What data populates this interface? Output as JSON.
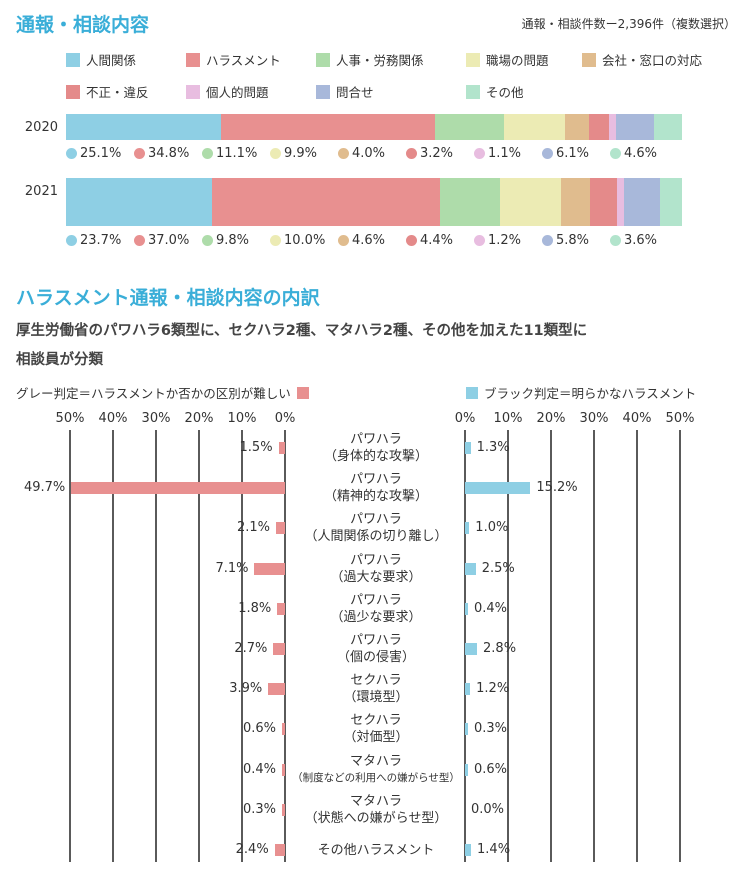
{
  "section1": {
    "title": "通報・相談内容",
    "note": "通報・相談件数ー2,396件（複数選択）"
  },
  "section2": {
    "title": "ハラスメント通報・相談内容の内訳",
    "desc_line1": "厚生労働省のパワハラ6類型に、セクハラ2種、マタハラ2種、その他を加えた11類型に",
    "desc_line2": "相談員が分類",
    "left_legend": "グレー判定＝ハラスメントか否かの区別が難しい",
    "right_legend": "ブラック判定＝明らかなハラスメント",
    "left_color": "#e89090",
    "right_color": "#8ecfe4"
  },
  "chart_data": [
    {
      "type": "bar",
      "stacked": true,
      "orientation": "horizontal",
      "categories": [
        "2020",
        "2021"
      ],
      "series": [
        {
          "name": "人間関係",
          "color": "#8ecfe4",
          "values": [
            25.1,
            23.7
          ]
        },
        {
          "name": "ハラスメント",
          "color": "#e89090",
          "values": [
            34.8,
            37.0
          ]
        },
        {
          "name": "人事・労務関係",
          "color": "#aedcaa",
          "values": [
            11.1,
            9.8
          ]
        },
        {
          "name": "職場の問題",
          "color": "#ecebb4",
          "values": [
            9.9,
            10.0
          ]
        },
        {
          "name": "会社・窓口の対応",
          "color": "#e0bc8e",
          "values": [
            4.0,
            4.6
          ]
        },
        {
          "name": "不正・違反",
          "color": "#e48a8a",
          "values": [
            3.2,
            4.4
          ]
        },
        {
          "name": "個人的問題",
          "color": "#e8bde0",
          "values": [
            1.1,
            1.2
          ]
        },
        {
          "name": "問合せ",
          "color": "#a8b8da",
          "values": [
            6.1,
            5.8
          ]
        },
        {
          "name": "その他",
          "color": "#b2e4cc",
          "values": [
            4.6,
            3.6
          ]
        }
      ],
      "value_labels": [
        [
          "25.1%",
          "34.8%",
          "11.1%",
          "9.9%",
          "4.0%",
          "3.2%",
          "1.1%",
          "6.1%",
          "4.6%"
        ],
        [
          "23.7%",
          "37.0%",
          "9.8%",
          "10.0%",
          "4.6%",
          "4.4%",
          "1.2%",
          "5.8%",
          "3.6%"
        ]
      ]
    },
    {
      "type": "bar",
      "orientation": "horizontal",
      "diverging": true,
      "xlim": [
        0,
        50
      ],
      "ticks": [
        "0%",
        "10%",
        "20%",
        "30%",
        "40%",
        "50%"
      ],
      "categories": [
        [
          "パワハラ",
          "（身体的な攻撃）"
        ],
        [
          "パワハラ",
          "（精神的な攻撃）"
        ],
        [
          "パワハラ",
          "（人間関係の切り離し）"
        ],
        [
          "パワハラ",
          "（過大な要求）"
        ],
        [
          "パワハラ",
          "（過少な要求）"
        ],
        [
          "パワハラ",
          "（個の侵害）"
        ],
        [
          "セクハラ",
          "（環境型）"
        ],
        [
          "セクハラ",
          "（対価型）"
        ],
        [
          "マタハラ",
          "（制度などの利用への嫌がらせ型）"
        ],
        [
          "マタハラ",
          "（状態への嫌がらせ型）"
        ],
        [
          "その他ハラスメント",
          ""
        ]
      ],
      "series": [
        {
          "name": "グレー判定＝ハラスメントか否かの区別が難しい",
          "side": "left",
          "color": "#e89090",
          "values": [
            1.5,
            49.7,
            2.1,
            7.1,
            1.8,
            2.7,
            3.9,
            0.6,
            0.4,
            0.3,
            2.4
          ],
          "labels": [
            "1.5%",
            "49.7%",
            "2.1%",
            "7.1%",
            "1.8%",
            "2.7%",
            "3.9%",
            "0.6%",
            "0.4%",
            "0.3%",
            "2.4%"
          ]
        },
        {
          "name": "ブラック判定＝明らかなハラスメント",
          "side": "right",
          "color": "#8ecfe4",
          "values": [
            1.3,
            15.2,
            1.0,
            2.5,
            0.4,
            2.8,
            1.2,
            0.3,
            0.6,
            0.0,
            1.4
          ],
          "labels": [
            "1.3%",
            "15.2%",
            "1.0%",
            "2.5%",
            "0.4%",
            "2.8%",
            "1.2%",
            "0.3%",
            "0.6%",
            "0.0%",
            "1.4%"
          ]
        }
      ]
    }
  ]
}
